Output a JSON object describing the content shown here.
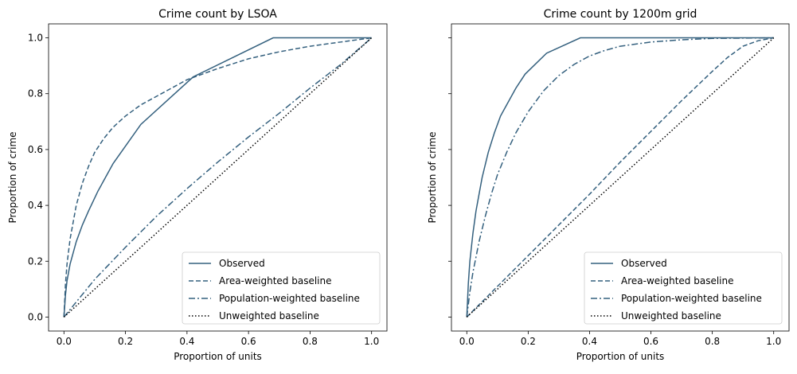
{
  "chart_data": [
    {
      "type": "line",
      "title": "Crime count by LSOA",
      "xlabel": "Proportion of units",
      "ylabel": "Proportion of crime",
      "xlim": [
        -0.05,
        1.05
      ],
      "ylim": [
        -0.05,
        1.05
      ],
      "xticks": [
        "0.0",
        "0.2",
        "0.4",
        "0.6",
        "0.8",
        "1.0"
      ],
      "yticks": [
        "0.0",
        "0.2",
        "0.4",
        "0.6",
        "0.8",
        "1.0"
      ],
      "legend_position": "lower-right",
      "series": [
        {
          "name": "Observed",
          "style": "solid",
          "color": "#34607e",
          "x": [
            0,
            0.005,
            0.01,
            0.02,
            0.04,
            0.06,
            0.08,
            0.11,
            0.16,
            0.25,
            0.42,
            0.68,
            1.0
          ],
          "y": [
            0,
            0.08,
            0.13,
            0.19,
            0.27,
            0.33,
            0.38,
            0.45,
            0.55,
            0.69,
            0.86,
            1.0,
            1.0
          ]
        },
        {
          "name": "Area-weighted baseline",
          "style": "dashed",
          "color": "#34607e",
          "x": [
            0,
            0.005,
            0.01,
            0.02,
            0.04,
            0.06,
            0.08,
            0.1,
            0.13,
            0.16,
            0.2,
            0.25,
            0.3,
            0.4,
            0.5,
            0.6,
            0.7,
            0.8,
            0.9,
            1.0
          ],
          "y": [
            0,
            0.12,
            0.19,
            0.28,
            0.4,
            0.48,
            0.54,
            0.59,
            0.64,
            0.68,
            0.72,
            0.76,
            0.79,
            0.85,
            0.89,
            0.925,
            0.95,
            0.97,
            0.985,
            1.0
          ]
        },
        {
          "name": "Population-weighted baseline",
          "style": "dashdot",
          "color": "#34607e",
          "x": [
            0,
            0.1,
            0.2,
            0.3,
            0.4,
            0.5,
            0.6,
            0.7,
            0.8,
            0.9,
            1.0
          ],
          "y": [
            0,
            0.135,
            0.25,
            0.36,
            0.46,
            0.555,
            0.645,
            0.73,
            0.82,
            0.905,
            1.0
          ]
        },
        {
          "name": "Unweighted baseline",
          "style": "dotted",
          "color": "#000000",
          "x": [
            0,
            1.0
          ],
          "y": [
            0,
            1.0
          ]
        }
      ]
    },
    {
      "type": "line",
      "title": "Crime count by 1200m grid",
      "xlabel": "Proportion of units",
      "ylabel": "Proportion of crime",
      "xlim": [
        -0.05,
        1.05
      ],
      "ylim": [
        -0.05,
        1.05
      ],
      "xticks": [
        "0.0",
        "0.2",
        "0.4",
        "0.6",
        "0.8",
        "1.0"
      ],
      "yticks": [
        "0.0",
        "0.2",
        "0.4",
        "0.6",
        "0.8",
        "1.0"
      ],
      "legend_position": "lower-right",
      "series": [
        {
          "name": "Observed",
          "style": "solid",
          "color": "#34607e",
          "x": [
            0,
            0.005,
            0.01,
            0.02,
            0.03,
            0.04,
            0.05,
            0.07,
            0.09,
            0.11,
            0.13,
            0.16,
            0.19,
            0.26,
            0.37,
            1.0
          ],
          "y": [
            0,
            0.12,
            0.2,
            0.3,
            0.38,
            0.44,
            0.5,
            0.59,
            0.66,
            0.72,
            0.76,
            0.82,
            0.87,
            0.945,
            1.0,
            1.0
          ]
        },
        {
          "name": "Area-weighted baseline",
          "style": "dashed",
          "color": "#34607e",
          "x": [
            0,
            0.1,
            0.2,
            0.3,
            0.4,
            0.5,
            0.6,
            0.7,
            0.8,
            0.85,
            0.9,
            0.95,
            1.0
          ],
          "y": [
            0,
            0.11,
            0.22,
            0.33,
            0.44,
            0.555,
            0.665,
            0.775,
            0.88,
            0.93,
            0.97,
            0.99,
            1.0
          ]
        },
        {
          "name": "Population-weighted baseline",
          "style": "dashdot",
          "color": "#34607e",
          "x": [
            0,
            0.01,
            0.02,
            0.04,
            0.06,
            0.08,
            0.1,
            0.13,
            0.16,
            0.2,
            0.25,
            0.3,
            0.35,
            0.4,
            0.45,
            0.5,
            0.6,
            0.7,
            0.8,
            1.0
          ],
          "y": [
            0,
            0.09,
            0.16,
            0.27,
            0.36,
            0.44,
            0.51,
            0.59,
            0.66,
            0.735,
            0.81,
            0.865,
            0.905,
            0.935,
            0.955,
            0.97,
            0.985,
            0.993,
            0.998,
            1.0
          ]
        },
        {
          "name": "Unweighted baseline",
          "style": "dotted",
          "color": "#000000",
          "x": [
            0,
            1.0
          ],
          "y": [
            0,
            1.0
          ]
        }
      ]
    }
  ]
}
